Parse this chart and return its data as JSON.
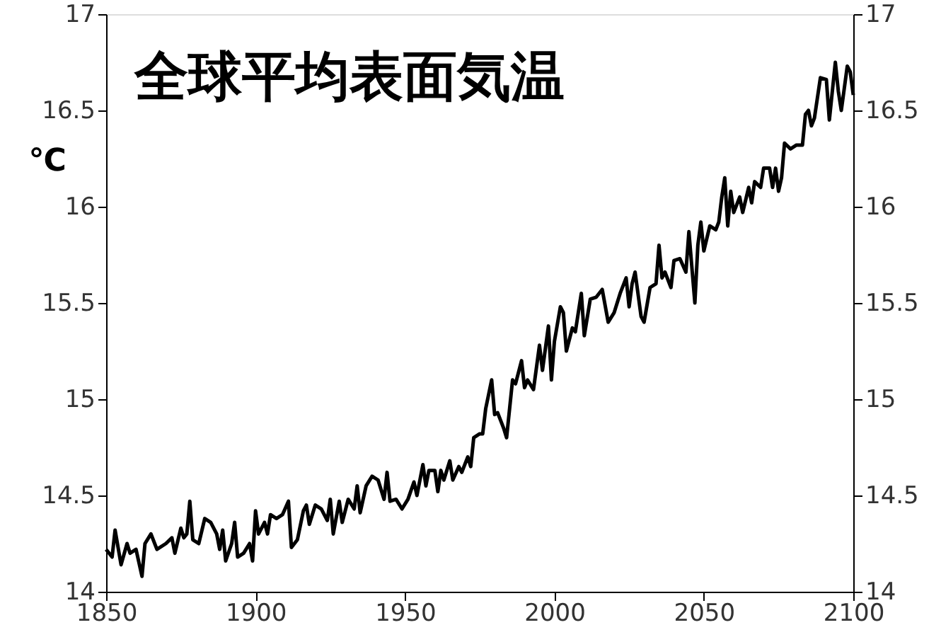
{
  "chart_data": {
    "type": "line",
    "title": "全球平均表面気温",
    "ylabel": "℃",
    "x": [
      1850,
      1852,
      1853,
      1855,
      1857,
      1858,
      1860,
      1862,
      1863,
      1865,
      1867,
      1870,
      1872,
      1873,
      1875,
      1876,
      1877,
      1878,
      1879,
      1881,
      1883,
      1885,
      1887,
      1888,
      1889,
      1890,
      1892,
      1893,
      1894,
      1896,
      1898,
      1899,
      1900,
      1901,
      1903,
      1904,
      1905,
      1907,
      1909,
      1911,
      1912,
      1914,
      1916,
      1917,
      1918,
      1920,
      1922,
      1924,
      1925,
      1926,
      1928,
      1929,
      1931,
      1933,
      1934,
      1935,
      1937,
      1939,
      1941,
      1943,
      1944,
      1945,
      1947,
      1949,
      1951,
      1953,
      1954,
      1956,
      1957,
      1958,
      1960,
      1961,
      1962,
      1963,
      1965,
      1966,
      1968,
      1969,
      1971,
      1972,
      1973,
      1975,
      1976,
      1977,
      1979,
      1980,
      1981,
      1983,
      1984,
      1986,
      1987,
      1989,
      1990,
      1991,
      1993,
      1995,
      1996,
      1998,
      1999,
      2000,
      2002,
      2003,
      2004,
      2006,
      2007,
      2009,
      2010,
      2012,
      2014,
      2016,
      2018,
      2020,
      2022,
      2024,
      2025,
      2026,
      2027,
      2029,
      2030,
      2032,
      2034,
      2035,
      2036,
      2037,
      2039,
      2040,
      2042,
      2044,
      2045,
      2047,
      2048,
      2049,
      2050,
      2052,
      2054,
      2055,
      2056,
      2057,
      2058,
      2059,
      2060,
      2062,
      2063,
      2065,
      2066,
      2067,
      2069,
      2070,
      2072,
      2073,
      2074,
      2075,
      2076,
      2077,
      2079,
      2081,
      2083,
      2084,
      2085,
      2086,
      2087,
      2089,
      2091,
      2092,
      2094,
      2095,
      2096,
      2098,
      2099,
      2100
    ],
    "series": [
      {
        "color": "#000000",
        "values": [
          14.22,
          14.18,
          14.32,
          14.14,
          14.25,
          14.2,
          14.22,
          14.08,
          14.25,
          14.3,
          14.22,
          14.25,
          14.28,
          14.2,
          14.33,
          14.28,
          14.3,
          14.47,
          14.27,
          14.25,
          14.38,
          14.36,
          14.3,
          14.22,
          14.32,
          14.16,
          14.25,
          14.36,
          14.18,
          14.2,
          14.25,
          14.16,
          14.42,
          14.3,
          14.36,
          14.3,
          14.4,
          14.38,
          14.4,
          14.47,
          14.23,
          14.27,
          14.42,
          14.45,
          14.35,
          14.45,
          14.43,
          14.37,
          14.48,
          14.3,
          14.47,
          14.36,
          14.48,
          14.43,
          14.55,
          14.41,
          14.55,
          14.6,
          14.58,
          14.48,
          14.62,
          14.47,
          14.48,
          14.43,
          14.48,
          14.57,
          14.5,
          14.66,
          14.55,
          14.63,
          14.63,
          14.52,
          14.63,
          14.58,
          14.68,
          14.58,
          14.65,
          14.62,
          14.7,
          14.65,
          14.8,
          14.82,
          14.82,
          14.95,
          15.1,
          14.92,
          14.93,
          14.85,
          14.8,
          15.1,
          15.08,
          15.2,
          15.06,
          15.1,
          15.05,
          15.28,
          15.15,
          15.38,
          15.1,
          15.3,
          15.48,
          15.45,
          15.25,
          15.37,
          15.35,
          15.55,
          15.33,
          15.52,
          15.53,
          15.57,
          15.4,
          15.45,
          15.55,
          15.63,
          15.48,
          15.6,
          15.66,
          15.43,
          15.4,
          15.58,
          15.6,
          15.8,
          15.63,
          15.66,
          15.58,
          15.72,
          15.73,
          15.66,
          15.87,
          15.5,
          15.8,
          15.92,
          15.77,
          15.9,
          15.88,
          15.92,
          16.05,
          16.15,
          15.9,
          16.08,
          15.97,
          16.05,
          15.97,
          16.1,
          16.02,
          16.13,
          16.1,
          16.2,
          16.2,
          16.1,
          16.2,
          16.08,
          16.15,
          16.33,
          16.3,
          16.32,
          16.32,
          16.48,
          16.5,
          16.42,
          16.46,
          16.67,
          16.66,
          16.45,
          16.75,
          16.6,
          16.5,
          16.73,
          16.7,
          16.58
        ]
      }
    ],
    "xlim": [
      1850,
      2100
    ],
    "xticks": [
      1850,
      1900,
      1950,
      2000,
      2050,
      2100
    ],
    "ylim": [
      14,
      17
    ],
    "yticks": [
      14,
      14.5,
      15,
      15.5,
      16,
      16.5,
      17
    ],
    "y2lim": [
      14,
      17
    ],
    "y2ticks": [
      14,
      14.5,
      15,
      15.5,
      16,
      16.5,
      17
    ],
    "grid": false,
    "marker": "none",
    "line_style": "solid"
  }
}
